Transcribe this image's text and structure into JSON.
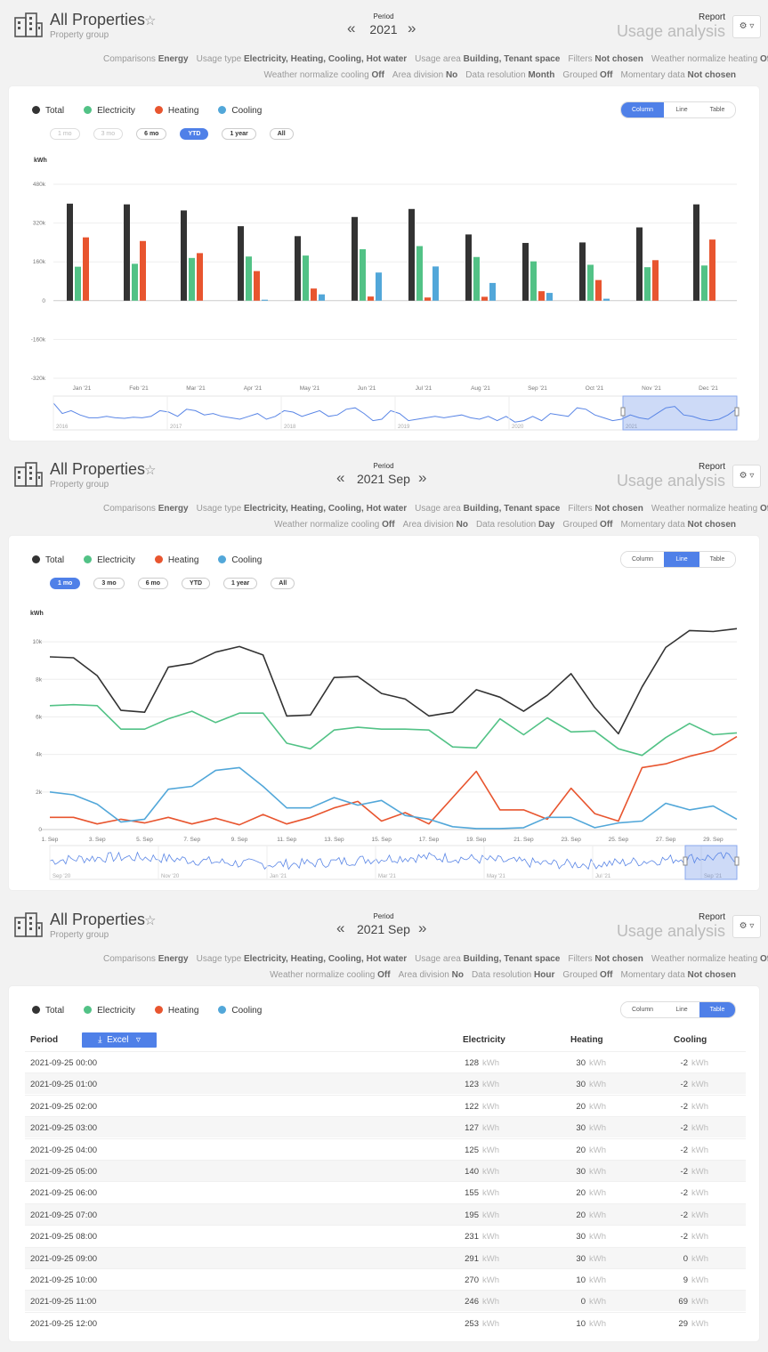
{
  "colors": {
    "total": "#333333",
    "electricity": "#52c286",
    "heating": "#e8552f",
    "cooling": "#52a7d9",
    "accent": "#4f80e8",
    "navigator": "#5a86e6"
  },
  "sections": [
    {
      "title": "All Properties",
      "subtitle": "Property group",
      "period_label": "Period",
      "period_value": "2021",
      "report_label": "Report",
      "report_value": "Usage analysis",
      "filter_rows": [
        [
          [
            "Comparisons",
            "Energy"
          ],
          [
            "Usage type",
            "Electricity, Heating, Cooling, Hot water"
          ],
          [
            "Usage area",
            "Building, Tenant space"
          ],
          [
            "Filters",
            "Not chosen"
          ],
          [
            "Weather normalize heating",
            "Off"
          ]
        ],
        [
          [
            "Weather normalize cooling",
            "Off"
          ],
          [
            "Area division",
            "No"
          ],
          [
            "Data resolution",
            "Month"
          ],
          [
            "Grouped",
            "Off"
          ],
          [
            "Momentary data",
            "Not chosen"
          ]
        ]
      ],
      "legend": [
        "Total",
        "Electricity",
        "Heating",
        "Cooling"
      ],
      "view_tabs": [
        "Column",
        "Line",
        "Table"
      ],
      "active_view": "Column",
      "ranges": [
        "1 mo",
        "3 mo",
        "6 mo",
        "YTD",
        "1 year",
        "All"
      ],
      "disabled_ranges": [
        "1 mo",
        "3 mo"
      ],
      "active_range": "YTD"
    },
    {
      "title": "All Properties",
      "subtitle": "Property group",
      "period_label": "Period",
      "period_value": "2021 Sep",
      "report_label": "Report",
      "report_value": "Usage analysis",
      "filter_rows": [
        [
          [
            "Comparisons",
            "Energy"
          ],
          [
            "Usage type",
            "Electricity, Heating, Cooling, Hot water"
          ],
          [
            "Usage area",
            "Building, Tenant space"
          ],
          [
            "Filters",
            "Not chosen"
          ],
          [
            "Weather normalize heating",
            "Off"
          ]
        ],
        [
          [
            "Weather normalize cooling",
            "Off"
          ],
          [
            "Area division",
            "No"
          ],
          [
            "Data resolution",
            "Day"
          ],
          [
            "Grouped",
            "Off"
          ],
          [
            "Momentary data",
            "Not chosen"
          ]
        ]
      ],
      "legend": [
        "Total",
        "Electricity",
        "Heating",
        "Cooling"
      ],
      "view_tabs": [
        "Column",
        "Line",
        "Table"
      ],
      "active_view": "Line",
      "ranges": [
        "1 mo",
        "3 mo",
        "6 mo",
        "YTD",
        "1 year",
        "All"
      ],
      "disabled_ranges": [],
      "active_range": "1 mo"
    },
    {
      "title": "All Properties",
      "subtitle": "Property group",
      "period_label": "Period",
      "period_value": "2021 Sep",
      "report_label": "Report",
      "report_value": "Usage analysis",
      "filter_rows": [
        [
          [
            "Comparisons",
            "Energy"
          ],
          [
            "Usage type",
            "Electricity, Heating, Cooling, Hot water"
          ],
          [
            "Usage area",
            "Building, Tenant space"
          ],
          [
            "Filters",
            "Not chosen"
          ],
          [
            "Weather normalize heating",
            "Off"
          ]
        ],
        [
          [
            "Weather normalize cooling",
            "Off"
          ],
          [
            "Area division",
            "No"
          ],
          [
            "Data resolution",
            "Hour"
          ],
          [
            "Grouped",
            "Off"
          ],
          [
            "Momentary data",
            "Not chosen"
          ]
        ]
      ],
      "legend": [
        "Total",
        "Electricity",
        "Heating",
        "Cooling"
      ],
      "view_tabs": [
        "Column",
        "Line",
        "Table"
      ],
      "active_view": "Table"
    }
  ],
  "chart_data": [
    {
      "type": "bar",
      "unit_label": "kWh",
      "categories": [
        "Jan '21",
        "Feb '21",
        "Mar '21",
        "Apr '21",
        "May '21",
        "Jun '21",
        "Jul '21",
        "Aug '21",
        "Sep '21",
        "Oct '21",
        "Nov '21",
        "Dec '21"
      ],
      "ylim": [
        -320000,
        480000
      ],
      "yticks": [
        480000,
        320000,
        160000,
        0,
        -160000,
        -320000
      ],
      "ytick_labels": [
        "480k",
        "320k",
        "160k",
        "0",
        "-160k",
        "-320k"
      ],
      "series": [
        {
          "name": "Total",
          "values": [
            400000,
            397000,
            372000,
            307000,
            266000,
            345000,
            378000,
            273000,
            238000,
            240000,
            302000,
            397000
          ]
        },
        {
          "name": "Electricity",
          "values": [
            140000,
            152000,
            176000,
            182000,
            186000,
            212000,
            225000,
            180000,
            162000,
            148000,
            138000,
            145000
          ]
        },
        {
          "name": "Heating",
          "values": [
            261000,
            246000,
            196000,
            122000,
            50000,
            17000,
            13000,
            16000,
            39000,
            85000,
            167000,
            252000
          ]
        },
        {
          "name": "Cooling",
          "values": [
            0,
            0,
            0,
            4000,
            26000,
            116000,
            141000,
            73000,
            32000,
            8000,
            0,
            0
          ]
        }
      ],
      "navigator": {
        "labels": [
          "2016",
          "2017",
          "2018",
          "2019",
          "2020",
          "2021"
        ],
        "values": [
          0.82,
          0.45,
          0.55,
          0.4,
          0.3,
          0.3,
          0.35,
          0.3,
          0.28,
          0.32,
          0.3,
          0.35,
          0.55,
          0.5,
          0.35,
          0.6,
          0.55,
          0.4,
          0.45,
          0.35,
          0.3,
          0.25,
          0.35,
          0.45,
          0.25,
          0.35,
          0.55,
          0.5,
          0.35,
          0.45,
          0.55,
          0.35,
          0.4,
          0.6,
          0.65,
          0.45,
          0.2,
          0.25,
          0.55,
          0.45,
          0.2,
          0.25,
          0.3,
          0.35,
          0.3,
          0.35,
          0.4,
          0.3,
          0.25,
          0.35,
          0.2,
          0.35,
          0.15,
          0.2,
          0.35,
          0.2,
          0.45,
          0.4,
          0.35,
          0.65,
          0.6,
          0.4,
          0.3,
          0.2,
          0.25,
          0.4,
          0.3,
          0.25,
          0.45,
          0.65,
          0.7,
          0.4,
          0.35,
          0.25,
          0.2,
          0.25,
          0.4,
          0.62
        ]
      }
    },
    {
      "type": "line",
      "unit_label": "kWh",
      "x": [
        "1. Sep",
        "2. Sep",
        "3. Sep",
        "4. Sep",
        "5. Sep",
        "6. Sep",
        "7. Sep",
        "8. Sep",
        "9. Sep",
        "10. Sep",
        "11. Sep",
        "12. Sep",
        "13. Sep",
        "14. Sep",
        "15. Sep",
        "16. Sep",
        "17. Sep",
        "18. Sep",
        "19. Sep",
        "20. Sep",
        "21. Sep",
        "22. Sep",
        "23. Sep",
        "24. Sep",
        "25. Sep",
        "26. Sep",
        "27. Sep",
        "28. Sep",
        "29. Sep",
        "30. Sep"
      ],
      "xtick_labels": [
        "1. Sep",
        "3. Sep",
        "5. Sep",
        "7. Sep",
        "9. Sep",
        "11. Sep",
        "13. Sep",
        "15. Sep",
        "17. Sep",
        "19. Sep",
        "21. Sep",
        "23. Sep",
        "25. Sep",
        "27. Sep",
        "29. Sep"
      ],
      "ylim": [
        0,
        11000
      ],
      "yticks": [
        0,
        2000,
        4000,
        6000,
        8000,
        10000
      ],
      "ytick_labels": [
        "0",
        "2k",
        "4k",
        "6k",
        "8k",
        "10k"
      ],
      "series": [
        {
          "name": "Total",
          "values": [
            9200,
            9150,
            8200,
            6350,
            6250,
            8650,
            8850,
            9450,
            9750,
            9300,
            6050,
            6100,
            8100,
            8150,
            7250,
            6950,
            6050,
            6250,
            7450,
            7050,
            6300,
            7150,
            8300,
            6500,
            5100,
            7600,
            9700,
            10600,
            10550,
            10700
          ]
        },
        {
          "name": "Electricity",
          "values": [
            6600,
            6650,
            6600,
            5350,
            5350,
            5900,
            6300,
            5700,
            6200,
            6200,
            4600,
            4300,
            5300,
            5450,
            5350,
            5350,
            5300,
            4400,
            4350,
            5900,
            5050,
            5950,
            5200,
            5250,
            4300,
            3950,
            4900,
            5650,
            5050,
            5150
          ]
        },
        {
          "name": "Heating",
          "values": [
            650,
            650,
            300,
            550,
            350,
            650,
            300,
            600,
            250,
            800,
            300,
            650,
            1150,
            1500,
            450,
            900,
            300,
            1700,
            3100,
            1050,
            1050,
            550,
            2200,
            850,
            450,
            3300,
            3500,
            3900,
            4200,
            4950
          ]
        },
        {
          "name": "Cooling",
          "values": [
            2000,
            1850,
            1350,
            400,
            550,
            2150,
            2300,
            3150,
            3300,
            2300,
            1150,
            1150,
            1700,
            1300,
            1550,
            750,
            550,
            150,
            50,
            50,
            100,
            650,
            650,
            100,
            350,
            450,
            1400,
            1050,
            1250,
            550
          ]
        }
      ],
      "navigator": {
        "labels": [
          "Sep '20",
          "Nov '20",
          "Jan '21",
          "Mar '21",
          "May '21",
          "Jul '21",
          "Sep '21"
        ]
      }
    }
  ],
  "table": {
    "columns": [
      "Period",
      "Electricity",
      "Heating",
      "Cooling"
    ],
    "excel_label": "Excel",
    "unit": "kWh",
    "rows": [
      [
        "2021-09-25 00:00",
        "128",
        "30",
        "-2"
      ],
      [
        "2021-09-25 01:00",
        "123",
        "30",
        "-2"
      ],
      [
        "2021-09-25 02:00",
        "122",
        "20",
        "-2"
      ],
      [
        "2021-09-25 03:00",
        "127",
        "30",
        "-2"
      ],
      [
        "2021-09-25 04:00",
        "125",
        "20",
        "-2"
      ],
      [
        "2021-09-25 05:00",
        "140",
        "30",
        "-2"
      ],
      [
        "2021-09-25 06:00",
        "155",
        "20",
        "-2"
      ],
      [
        "2021-09-25 07:00",
        "195",
        "20",
        "-2"
      ],
      [
        "2021-09-25 08:00",
        "231",
        "30",
        "-2"
      ],
      [
        "2021-09-25 09:00",
        "291",
        "30",
        "0"
      ],
      [
        "2021-09-25 10:00",
        "270",
        "10",
        "9"
      ],
      [
        "2021-09-25 11:00",
        "246",
        "0",
        "69"
      ],
      [
        "2021-09-25 12:00",
        "253",
        "10",
        "29"
      ]
    ]
  }
}
